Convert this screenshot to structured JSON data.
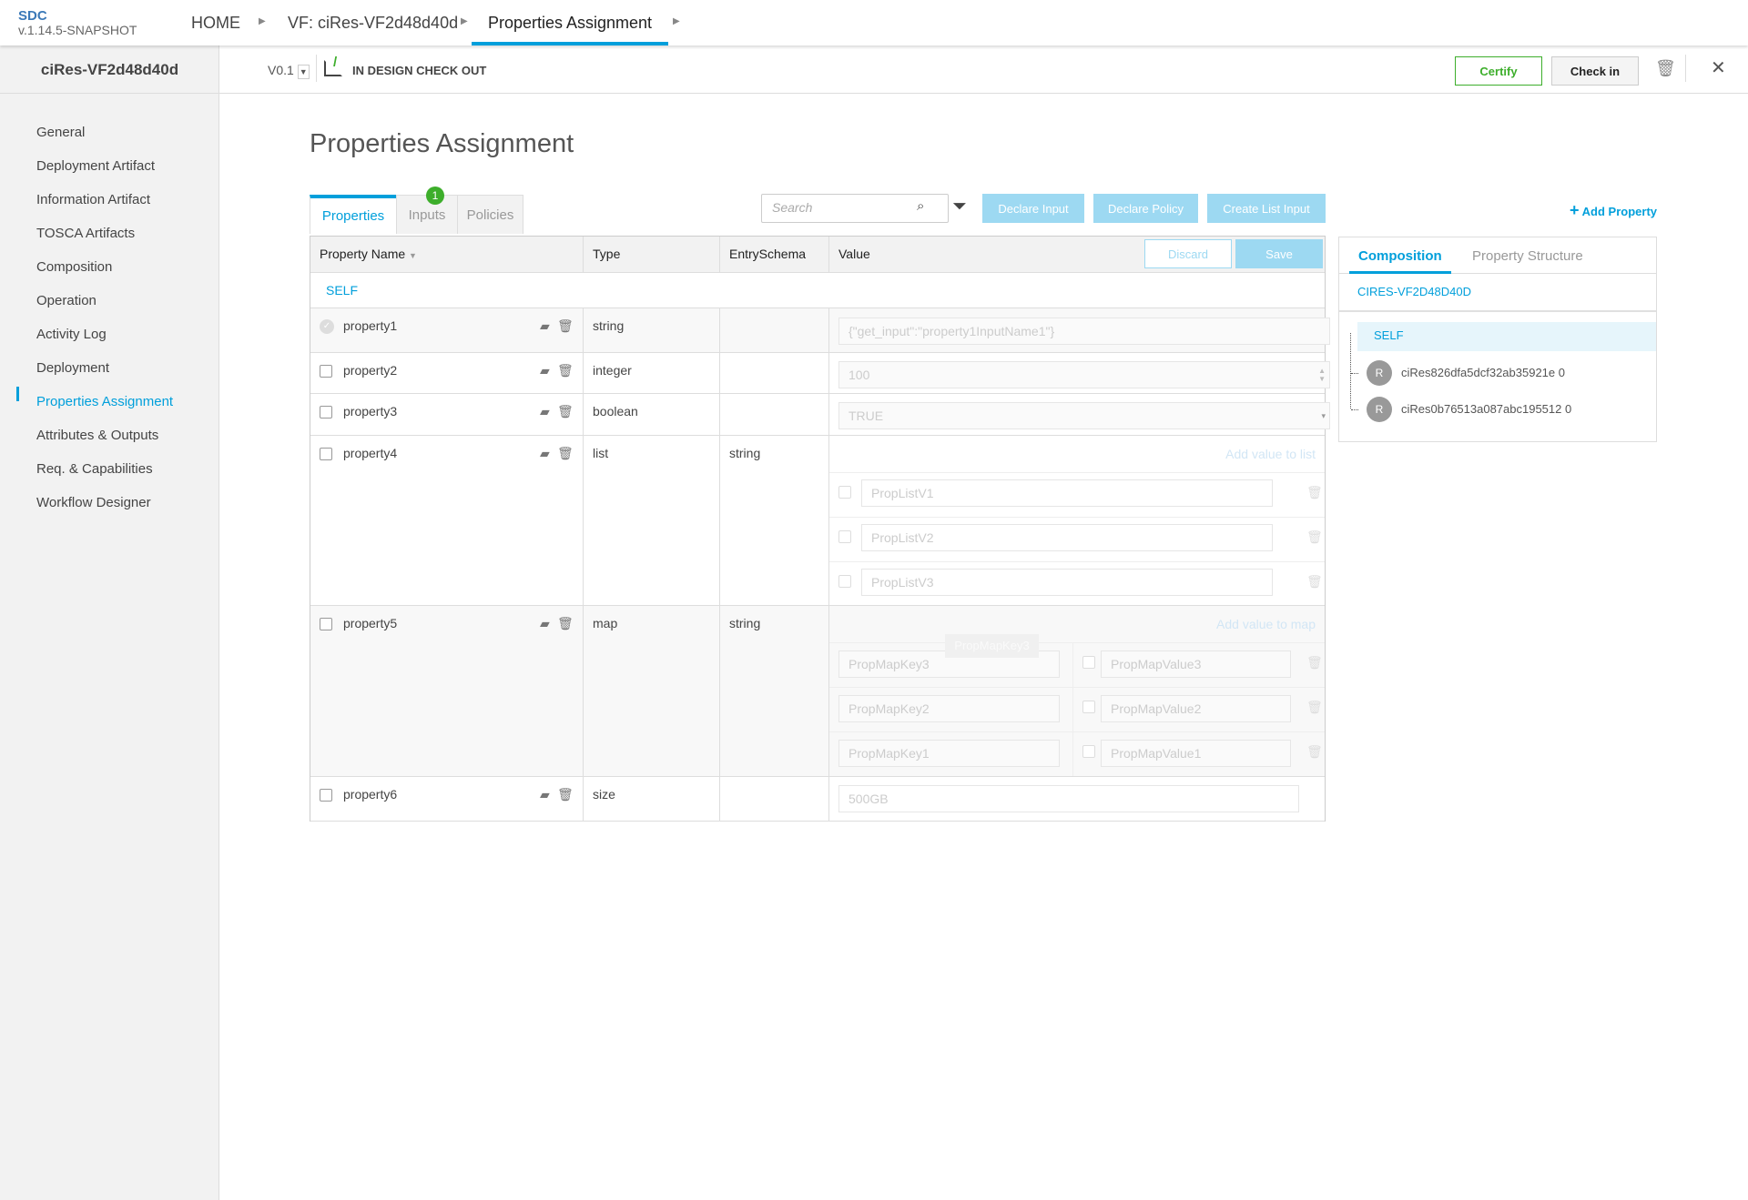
{
  "app": {
    "name": "SDC",
    "version": "v.1.14.5-SNAPSHOT"
  },
  "breadcrumb": [
    {
      "label": "HOME"
    },
    {
      "label": "VF: ciRes-VF2d48d40d"
    },
    {
      "label": "Properties Assignment",
      "active": true
    }
  ],
  "subbar": {
    "resource_name": "ciRes-VF2d48d40d",
    "version": "V0.1",
    "status": "IN DESIGN CHECK OUT",
    "certify": "Certify",
    "checkin": "Check in"
  },
  "sidebar": {
    "items": [
      {
        "label": "General"
      },
      {
        "label": "Deployment Artifact"
      },
      {
        "label": "Information Artifact"
      },
      {
        "label": "TOSCA Artifacts"
      },
      {
        "label": "Composition"
      },
      {
        "label": "Operation"
      },
      {
        "label": "Activity Log"
      },
      {
        "label": "Deployment"
      },
      {
        "label": "Properties Assignment",
        "active": true
      },
      {
        "label": "Attributes & Outputs"
      },
      {
        "label": "Req. & Capabilities"
      },
      {
        "label": "Workflow Designer"
      }
    ]
  },
  "page": {
    "title": "Properties Assignment"
  },
  "tabs": [
    {
      "label": "Properties",
      "active": true
    },
    {
      "label": "Inputs",
      "badge": "1"
    },
    {
      "label": "Policies"
    }
  ],
  "toolbar": {
    "search_placeholder": "Search",
    "declare_input": "Declare Input",
    "declare_policy": "Declare Policy",
    "create_list_input": "Create List Input",
    "add_property": "Add Property"
  },
  "table": {
    "headers": {
      "name": "Property Name",
      "type": "Type",
      "schema": "EntrySchema",
      "value": "Value"
    },
    "discard": "Discard",
    "save": "Save",
    "group": "SELF",
    "rows": [
      {
        "name": "property1",
        "type": "string",
        "schema": "",
        "value": "{\"get_input\":\"property1InputName1\"}"
      },
      {
        "name": "property2",
        "type": "integer",
        "schema": "",
        "value": "100"
      },
      {
        "name": "property3",
        "type": "boolean",
        "schema": "",
        "value": "TRUE"
      },
      {
        "name": "property4",
        "type": "list",
        "schema": "string",
        "add": "Add value to list",
        "items": [
          "PropListV1",
          "PropListV2",
          "PropListV3"
        ]
      },
      {
        "name": "property5",
        "type": "map",
        "schema": "string",
        "add": "Add value to map",
        "tooltip": "PropMapKey3",
        "entries": [
          {
            "key": "PropMapKey3",
            "value": "PropMapValue3"
          },
          {
            "key": "PropMapKey2",
            "value": "PropMapValue2"
          },
          {
            "key": "PropMapKey1",
            "value": "PropMapValue1"
          }
        ]
      },
      {
        "name": "property6",
        "type": "size",
        "schema": "",
        "value": "500GB"
      }
    ]
  },
  "panel": {
    "tabs": [
      {
        "label": "Composition",
        "active": true
      },
      {
        "label": "Property Structure"
      }
    ],
    "root": "CIRES-VF2D48D40D",
    "self": "SELF",
    "instances": [
      {
        "avatar": "R",
        "name": "ciRes826dfa5dcf32ab35921e 0"
      },
      {
        "avatar": "R",
        "name": "ciRes0b76513a087abc195512 0"
      }
    ]
  },
  "colors": {
    "accent": "#009fdb",
    "certify": "#3dae2b",
    "badge": "#3dae2b",
    "button_disabled": "#9dd9f2"
  }
}
